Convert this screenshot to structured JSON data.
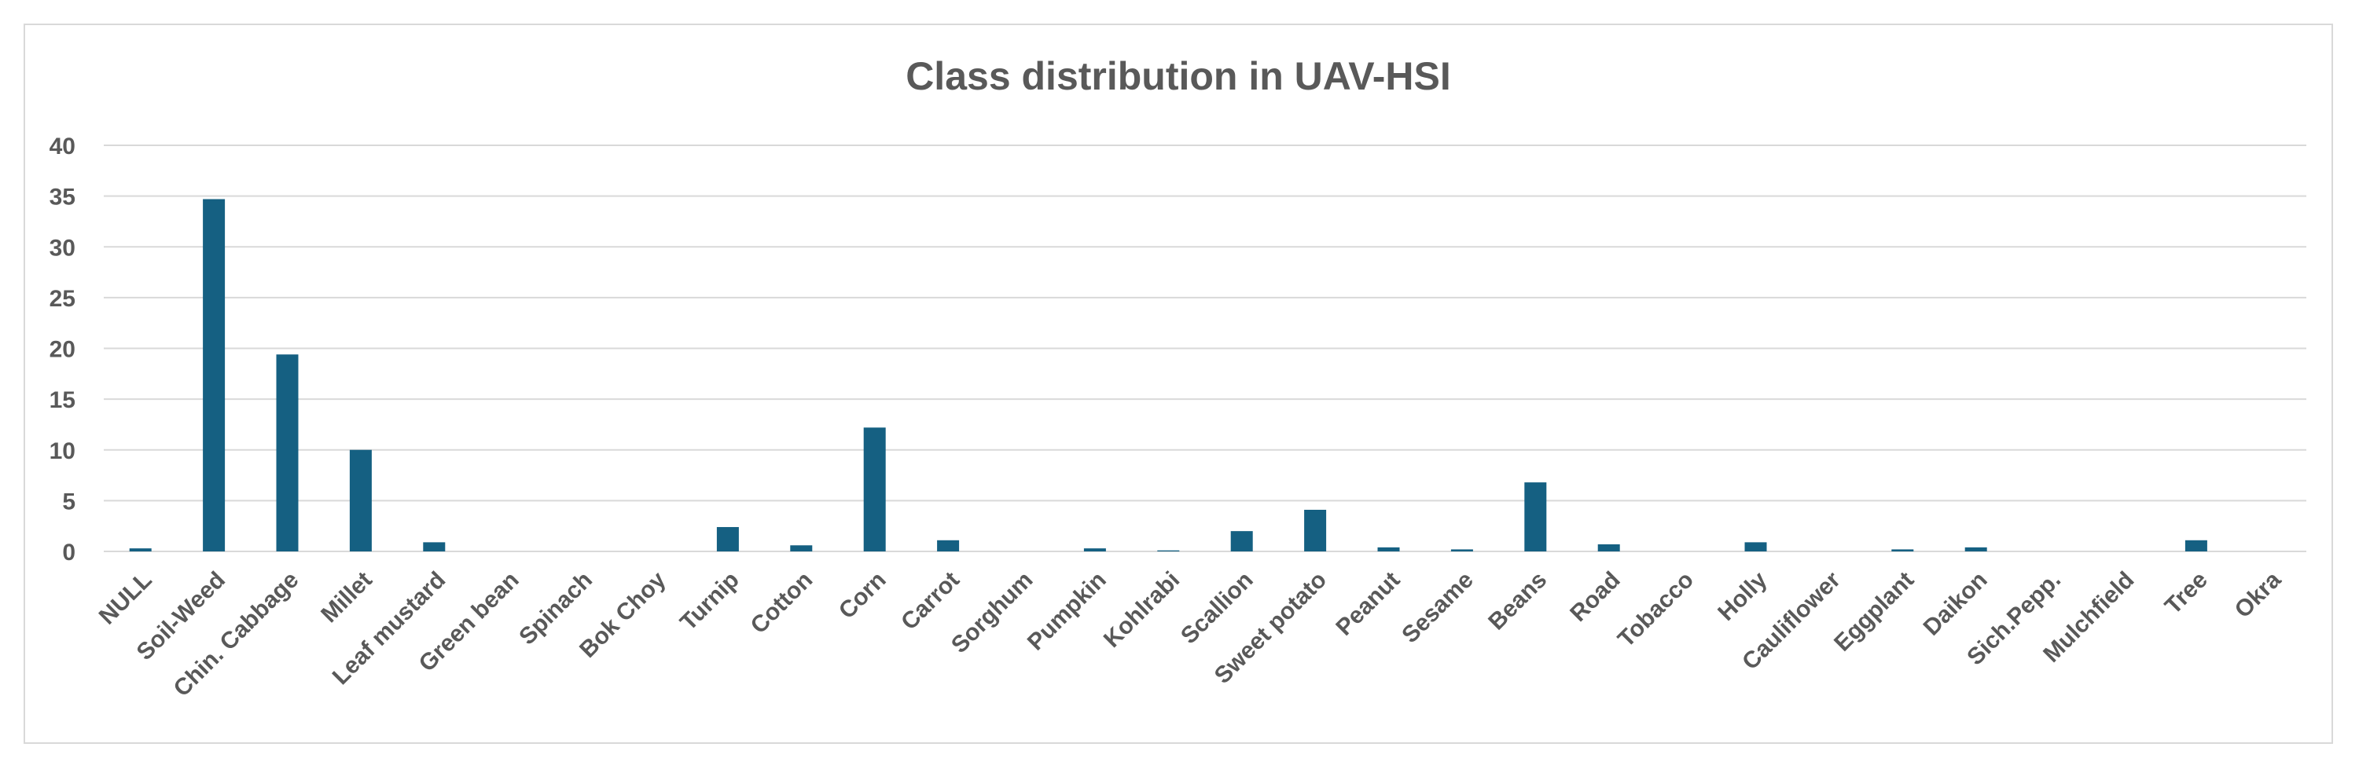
{
  "chart_data": {
    "type": "bar",
    "title": "Class distribution in UAV-HSI",
    "xlabel": "",
    "ylabel": "",
    "ylim": [
      0,
      40
    ],
    "yticks": [
      0,
      5,
      10,
      15,
      20,
      25,
      30,
      35,
      40
    ],
    "grid": true,
    "legend": "none",
    "bar_color": "#156082",
    "categories": [
      "NULL",
      "Soil-Weed",
      "Chin. Cabbage",
      "Millet",
      "Leaf mustard",
      "Green bean",
      "Spinach",
      "Bok Choy",
      "Turnip",
      "Cotton",
      "Corn",
      "Carrot",
      "Sorghum",
      "Pumpkin",
      "Kohlrabi",
      "Scallion",
      "Sweet potato",
      "Peanut",
      "Sesame",
      "Beans",
      "Road",
      "Tobacco",
      "Holly",
      "Cauliflower",
      "Eggplant",
      "Daikon",
      "Sich.Pepp.",
      "Mulchfield",
      "Tree",
      "Okra"
    ],
    "values": [
      0.3,
      34.7,
      19.4,
      10.0,
      0.9,
      0.0,
      0.0,
      0.0,
      2.4,
      0.6,
      12.2,
      1.1,
      0.0,
      0.3,
      0.1,
      2.0,
      4.1,
      0.4,
      0.2,
      6.8,
      0.7,
      0.0,
      0.9,
      0.0,
      0.2,
      0.4,
      0.0,
      0.0,
      1.1,
      0.0
    ]
  }
}
